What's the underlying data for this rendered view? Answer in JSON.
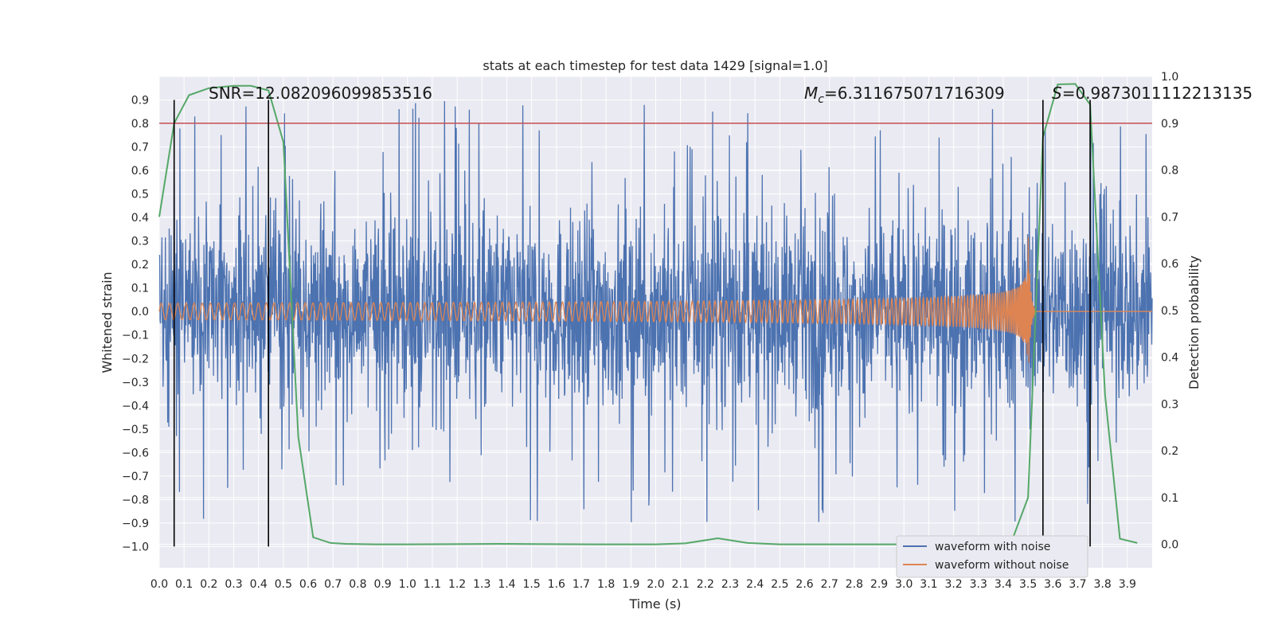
{
  "chart_data": {
    "type": "line",
    "title": "stats at each timestep for test data 1429 [signal=1.0]",
    "xlabel": "Time (s)",
    "ylabel": "Whitened strain",
    "y2label": "Detection probability",
    "xlim": [
      0.0,
      4.0
    ],
    "ylim": [
      -1.09,
      1.0
    ],
    "y2lim": [
      -0.05,
      1.0
    ],
    "x_ticks": [
      0.0,
      0.1,
      0.2,
      0.3,
      0.4,
      0.5,
      0.6,
      0.7,
      0.8,
      0.9,
      1.0,
      1.1,
      1.2,
      1.3,
      1.4,
      1.5,
      1.6,
      1.7,
      1.8,
      1.9,
      2.0,
      2.1,
      2.2,
      2.3,
      2.4,
      2.5,
      2.6,
      2.7,
      2.8,
      2.9,
      3.0,
      3.1,
      3.2,
      3.3,
      3.4,
      3.5,
      3.6,
      3.7,
      3.8,
      3.9
    ],
    "x_tick_labels": [
      "0.0",
      "0.1",
      "0.2",
      "0.3",
      "0.4",
      "0.5",
      "0.6",
      "0.7",
      "0.8",
      "0.9",
      "1.0",
      "1.1",
      "1.2",
      "1.3",
      "1.4",
      "1.5",
      "1.6",
      "1.7",
      "1.8",
      "1.9",
      "2.0",
      "2.1",
      "2.2",
      "2.3",
      "2.4",
      "2.5",
      "2.6",
      "2.7",
      "2.8",
      "2.9",
      "3.0",
      "3.1",
      "3.2",
      "3.3",
      "3.4",
      "3.5",
      "3.6",
      "3.7",
      "3.8",
      "3.9"
    ],
    "y_ticks": [
      0.9,
      0.8,
      0.7,
      0.6,
      0.5,
      0.4,
      0.3,
      0.2,
      0.1,
      0.0,
      -0.1,
      -0.2,
      -0.3,
      -0.4,
      -0.5,
      -0.6,
      -0.7,
      -0.8,
      -0.9,
      -1.0
    ],
    "y_tick_labels": [
      "0.9",
      "0.8",
      "0.7",
      "0.6",
      "0.5",
      "0.4",
      "0.3",
      "0.2",
      "0.1",
      "0.0",
      "−0.1",
      "−0.2",
      "−0.3",
      "−0.4",
      "−0.5",
      "−0.6",
      "−0.7",
      "−0.8",
      "−0.9",
      "−1.0"
    ],
    "y2_ticks": [
      1.0,
      0.9,
      0.8,
      0.7,
      0.6,
      0.5,
      0.4,
      0.3,
      0.2,
      0.1,
      0.0
    ],
    "y2_tick_labels": [
      "1.0",
      "0.9",
      "0.8",
      "0.7",
      "0.6",
      "0.5",
      "0.4",
      "0.3",
      "0.2",
      "0.1",
      "0.0"
    ],
    "grid": true,
    "legend_position": "lower-right",
    "annotations": {
      "snr": "SNR=12.082096099853516",
      "mc_symbol": "M",
      "mc_sub": "c",
      "mc_value": "=6.311675071716309",
      "s_symbol": "S",
      "s_value": "=0.9873011112213135"
    },
    "threshold": {
      "axis": "y2",
      "value": 0.9,
      "color": "#c44e52"
    },
    "vertical_markers_x": [
      0.06,
      0.44,
      3.56,
      3.75
    ],
    "noise_series": {
      "name": "waveform with noise",
      "color": "#4c72b0",
      "amplitude_typical": 0.45,
      "amplitude_peak": 0.9
    },
    "chirp_series": {
      "name": "waveform without noise",
      "color": "#dd8452",
      "amplitude_start": 0.035,
      "amplitude_end": 0.36,
      "cycles_start_per_s": 30,
      "merger_time": 3.5
    },
    "probability_series": {
      "color": "#55a868",
      "x": [
        0.0,
        0.06,
        0.12,
        0.2,
        0.3,
        0.37,
        0.44,
        0.5,
        0.56,
        0.62,
        0.69,
        0.75,
        0.87,
        1.0,
        1.25,
        1.37,
        1.5,
        1.75,
        2.0,
        2.12,
        2.25,
        2.37,
        2.5,
        2.75,
        3.0,
        3.25,
        3.37,
        3.44,
        3.5,
        3.56,
        3.62,
        3.69,
        3.75,
        3.81,
        3.87,
        3.94
      ],
      "y": [
        0.7,
        0.9,
        0.96,
        0.975,
        0.98,
        0.98,
        0.97,
        0.86,
        0.23,
        0.015,
        0.003,
        0.001,
        0.0,
        0.0,
        0.0005,
        0.001,
        0.0005,
        0.0,
        0.0,
        0.002,
        0.013,
        0.003,
        0.0,
        0.0,
        0.0,
        0.0,
        0.0,
        0.015,
        0.1,
        0.87,
        0.983,
        0.984,
        0.94,
        0.32,
        0.012,
        0.003
      ]
    },
    "series": [
      {
        "name": "waveform with noise",
        "color": "#4c72b0"
      },
      {
        "name": "waveform without noise",
        "color": "#dd8452"
      }
    ]
  }
}
